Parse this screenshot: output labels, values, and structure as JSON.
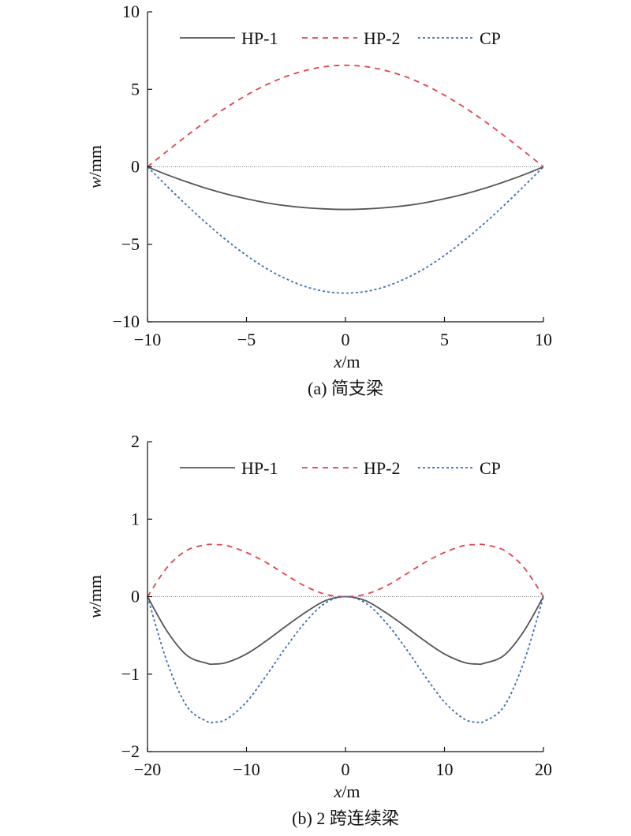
{
  "chart_data": [
    {
      "type": "line",
      "caption": "(a) 简支梁",
      "xlabel": "x/m",
      "ylabel": "w/mm",
      "xlim": [
        -10,
        10
      ],
      "ylim": [
        -10,
        10
      ],
      "xticks": [
        -10,
        -5,
        0,
        5,
        10
      ],
      "yticks": [
        -10,
        -5,
        0,
        5,
        10
      ],
      "xtick_labels": [
        "−10",
        "−5",
        "0",
        "5",
        "10"
      ],
      "ytick_labels": [
        "−10",
        "−5",
        "0",
        "5",
        "10"
      ],
      "grid": false,
      "legend": "top",
      "zero_line": true,
      "x": [
        -10,
        -9,
        -8,
        -7,
        -6,
        -5,
        -4,
        -3,
        -2,
        -1,
        0,
        1,
        2,
        3,
        4,
        5,
        6,
        7,
        8,
        9,
        10
      ],
      "series": [
        {
          "name": "HP-1",
          "color": "#555555",
          "dash": "solid",
          "values": [
            0,
            -0.52,
            -0.98,
            -1.4,
            -1.76,
            -2.06,
            -2.32,
            -2.51,
            -2.64,
            -2.72,
            -2.75,
            -2.72,
            -2.64,
            -2.51,
            -2.32,
            -2.06,
            -1.76,
            -1.4,
            -0.98,
            -0.52,
            0
          ]
        },
        {
          "name": "HP-2",
          "color": "#e0434b",
          "dash": "dashed",
          "values": [
            0,
            1.02,
            2.02,
            2.97,
            3.84,
            4.62,
            5.29,
            5.83,
            6.22,
            6.47,
            6.55,
            6.47,
            6.22,
            5.83,
            5.29,
            4.62,
            3.84,
            2.97,
            2.02,
            1.02,
            0
          ]
        },
        {
          "name": "CP",
          "color": "#3d6eb5",
          "dash": "dotted",
          "values": [
            0,
            -1.27,
            -2.5,
            -3.67,
            -4.75,
            -5.72,
            -6.56,
            -7.23,
            -7.74,
            -8.05,
            -8.15,
            -8.05,
            -7.74,
            -7.23,
            -6.56,
            -5.72,
            -4.75,
            -3.67,
            -2.5,
            -1.27,
            0
          ]
        }
      ]
    },
    {
      "type": "line",
      "caption": "(b) 2 跨连续梁",
      "xlabel": "x/m",
      "ylabel": "w/mm",
      "xlim": [
        -20,
        20
      ],
      "ylim": [
        -2,
        2
      ],
      "xticks": [
        -20,
        -10,
        0,
        10,
        20
      ],
      "yticks": [
        -2,
        -1,
        0,
        1,
        2
      ],
      "xtick_labels": [
        "−20",
        "−10",
        "0",
        "10",
        "20"
      ],
      "ytick_labels": [
        "−2",
        "−1",
        "0",
        "1",
        "2"
      ],
      "grid": false,
      "legend": "top",
      "zero_line": true,
      "x": [
        -20,
        -18,
        -16,
        -14,
        -13.3,
        -12,
        -10,
        -8,
        -6,
        -4,
        -2,
        0,
        2,
        4,
        6,
        8,
        10,
        12,
        13.3,
        14,
        16,
        18,
        20
      ],
      "series": [
        {
          "name": "HP-1",
          "color": "#555555",
          "dash": "solid",
          "values": [
            0,
            -0.45,
            -0.76,
            -0.86,
            -0.87,
            -0.85,
            -0.74,
            -0.57,
            -0.38,
            -0.2,
            -0.05,
            0,
            -0.05,
            -0.2,
            -0.38,
            -0.57,
            -0.74,
            -0.85,
            -0.87,
            -0.86,
            -0.76,
            -0.45,
            0
          ]
        },
        {
          "name": "HP-2",
          "color": "#e0434b",
          "dash": "dashed",
          "values": [
            0,
            0.38,
            0.6,
            0.67,
            0.67,
            0.66,
            0.57,
            0.44,
            0.28,
            0.13,
            0.03,
            0,
            0.03,
            0.13,
            0.28,
            0.44,
            0.57,
            0.66,
            0.67,
            0.67,
            0.6,
            0.38,
            0
          ]
        },
        {
          "name": "CP",
          "color": "#3d6eb5",
          "dash": "dotted",
          "values": [
            0,
            -0.85,
            -1.42,
            -1.61,
            -1.62,
            -1.58,
            -1.36,
            -1.02,
            -0.65,
            -0.32,
            -0.08,
            0,
            -0.08,
            -0.32,
            -0.65,
            -1.02,
            -1.36,
            -1.58,
            -1.62,
            -1.61,
            -1.42,
            -0.85,
            0
          ]
        }
      ]
    }
  ]
}
